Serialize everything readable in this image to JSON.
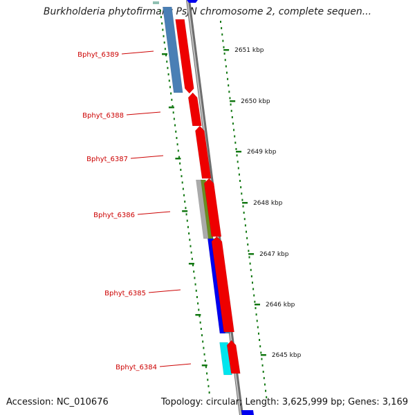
{
  "header": {
    "title": "Burkholderia phytofirmans PsJN chromosome 2, complete sequen..."
  },
  "footer": {
    "accession": "Accession: NC_010676",
    "summary": "Topology: circular; Length: 3,625,999 bp; Genes: 3,169"
  },
  "genes": [
    {
      "name": "Bphyt_6389",
      "color": "#cc0000"
    },
    {
      "name": "Bphyt_6388",
      "color": "#cc0000"
    },
    {
      "name": "Bphyt_6387",
      "color": "#cc0000"
    },
    {
      "name": "Bphyt_6386",
      "color": "#cc0000"
    },
    {
      "name": "Bphyt_6385",
      "color": "#cc0000"
    },
    {
      "name": "Bphyt_6384",
      "color": "#cc0000"
    }
  ],
  "kbp_ticks": [
    "2651 kbp",
    "2650 kbp",
    "2649 kbp",
    "2648 kbp",
    "2647 kbp",
    "2646 kbp",
    "2645 kbp"
  ],
  "colors": {
    "forward_gene": "#ee0000",
    "backbone": "#888888",
    "tick": "#117711",
    "blue_feature": "#0000ee",
    "steel_feature": "#4a7fb5",
    "olive_feature": "#6b8e23",
    "cyan_feature": "#00e5ee",
    "gray_feature": "#aaaaaa"
  }
}
